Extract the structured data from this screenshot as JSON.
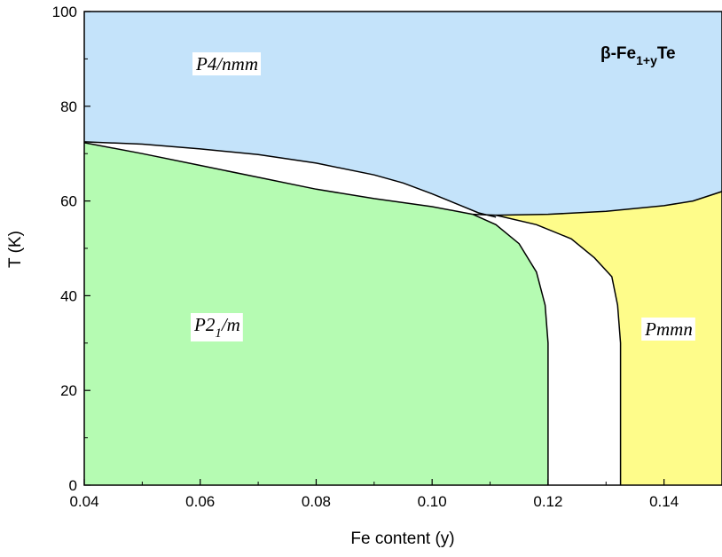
{
  "chart_data": {
    "type": "area",
    "title": "",
    "compound_label": {
      "prefix": "β-Fe",
      "subscript": "1+y",
      "suffix": "Te"
    },
    "xlabel": "Fe content (y)",
    "ylabel": "T (K)",
    "xlim": [
      0.04,
      0.15
    ],
    "ylim": [
      0,
      100
    ],
    "xticks": [
      "0.04",
      "0.06",
      "0.08",
      "0.10",
      "0.12",
      "0.14"
    ],
    "yticks": [
      "0",
      "20",
      "40",
      "60",
      "80",
      "100"
    ],
    "grid": false,
    "colors": {
      "tetragonal": "#c4e3fa",
      "monoclinic": "#b5fbb2",
      "orthorhombic": "#fefc8a",
      "coexistence": "#ffffff"
    },
    "regions": [
      {
        "id": "tetragonal",
        "label": "P4/nmm"
      },
      {
        "id": "monoclinic",
        "label_main": "P2",
        "label_sub": "1",
        "label_tail": "/m"
      },
      {
        "id": "orthorhombic",
        "label": "Pmmn"
      }
    ],
    "boundaries": {
      "upper_coexistence": [
        [
          0.04,
          72.5
        ],
        [
          0.05,
          72
        ],
        [
          0.06,
          71
        ],
        [
          0.07,
          69.8
        ],
        [
          0.08,
          68
        ],
        [
          0.09,
          65.5
        ],
        [
          0.095,
          63.8
        ],
        [
          0.1,
          61.5
        ],
        [
          0.105,
          59
        ],
        [
          0.108,
          57.5
        ],
        [
          0.111,
          56.6
        ]
      ],
      "lower_coexistence": [
        [
          0.04,
          72.3
        ],
        [
          0.05,
          70
        ],
        [
          0.06,
          67.5
        ],
        [
          0.07,
          65
        ],
        [
          0.08,
          62.5
        ],
        [
          0.09,
          60.5
        ],
        [
          0.1,
          58.8
        ],
        [
          0.107,
          57.2
        ]
      ],
      "ortho_top": [
        [
          0.107,
          57.2
        ],
        [
          0.111,
          57
        ],
        [
          0.12,
          57.2
        ],
        [
          0.13,
          57.8
        ],
        [
          0.14,
          59
        ],
        [
          0.145,
          60
        ],
        [
          0.15,
          62
        ]
      ],
      "mono_edge": [
        [
          0.107,
          57.2
        ],
        [
          0.111,
          55
        ],
        [
          0.115,
          51
        ],
        [
          0.118,
          45
        ],
        [
          0.1195,
          38
        ],
        [
          0.12,
          30
        ],
        [
          0.12,
          0
        ]
      ],
      "ortho_edge": [
        [
          0.111,
          57
        ],
        [
          0.118,
          55
        ],
        [
          0.124,
          52
        ],
        [
          0.128,
          48
        ],
        [
          0.131,
          44
        ],
        [
          0.132,
          38
        ],
        [
          0.1325,
          30
        ],
        [
          0.1325,
          0
        ]
      ]
    }
  }
}
